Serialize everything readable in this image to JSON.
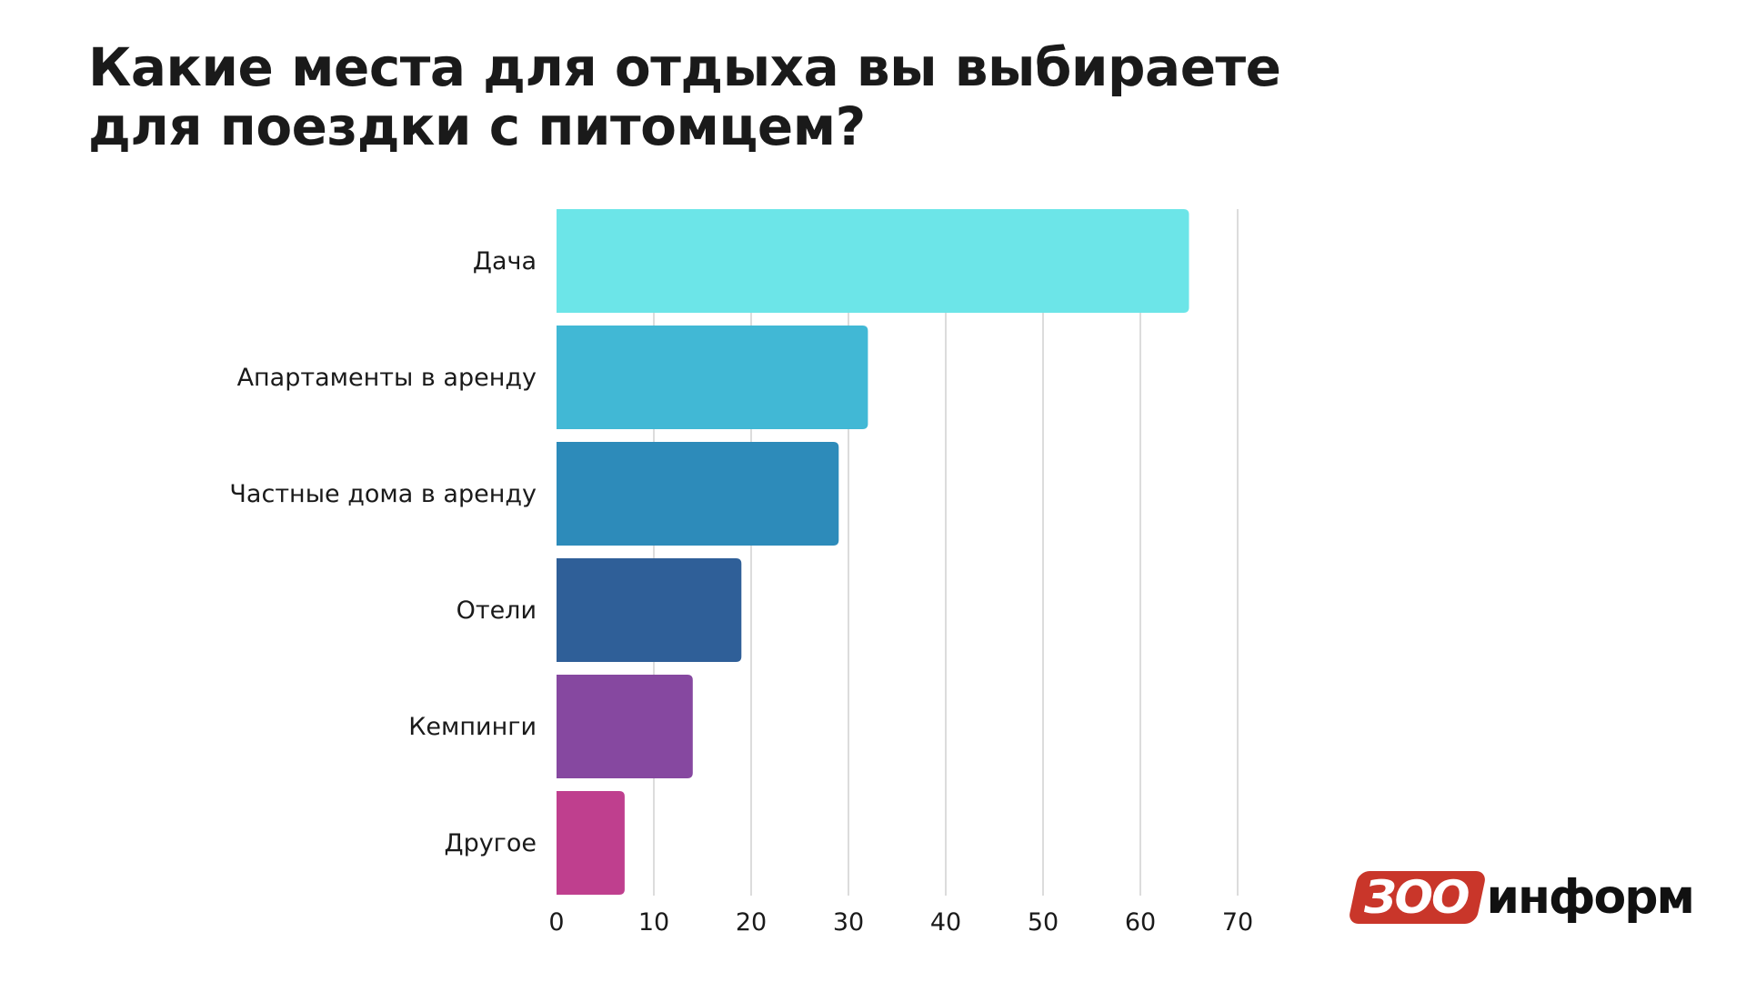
{
  "header": {
    "title_line1": "Какие места для отдыха вы выбираете",
    "title_line2": "для поездки с питомцем?"
  },
  "chart_data": {
    "type": "bar",
    "orientation": "horizontal",
    "title": "Какие места для отдыха вы выбираете для поездки с питомцем?",
    "categories": [
      "Дача",
      "Апартаменты в аренду",
      "Частные дома в аренду",
      "Отели",
      "Кемпинги",
      "Другое"
    ],
    "values": [
      65,
      32,
      29,
      19,
      14,
      7
    ],
    "colors": [
      "#6ce5e8",
      "#41b8d5",
      "#2d8bba",
      "#2f5f98",
      "#8648a0",
      "#bf3f8e"
    ],
    "xlim": [
      0,
      70
    ],
    "xticks": [
      0,
      10,
      20,
      30,
      40,
      50,
      60,
      70
    ],
    "xlabel": "",
    "ylabel": "",
    "grid": "vertical"
  },
  "logo": {
    "zoo": "ЗОО",
    "inform": "информ",
    "accent_color": "#c9362a"
  }
}
